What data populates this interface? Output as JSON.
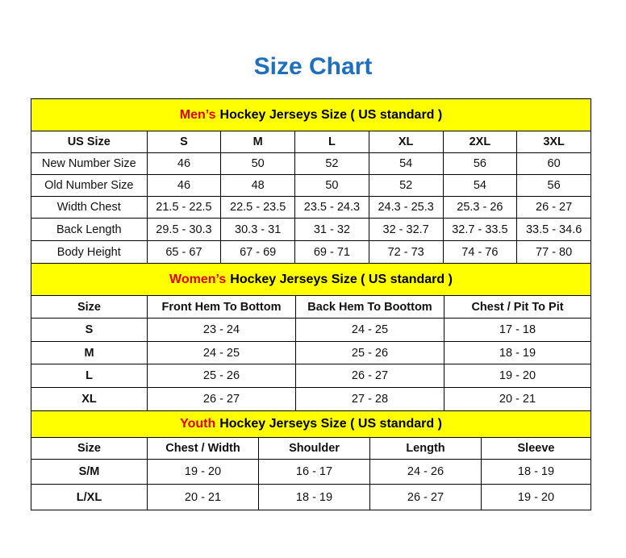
{
  "title": "Size Chart",
  "colors": {
    "title": "#1f6fbf",
    "banner": "#ffff00",
    "highlight": "#e00000"
  },
  "sections": [
    {
      "highlight": "Men’s",
      "banner": "Hockey Jerseys Size ( US standard )",
      "headers": [
        "US Size",
        "S",
        "M",
        "L",
        "XL",
        "2XL",
        "3XL"
      ],
      "rows": [
        [
          "New Number Size",
          "46",
          "50",
          "52",
          "54",
          "56",
          "60"
        ],
        [
          "Old Number Size",
          "46",
          "48",
          "50",
          "52",
          "54",
          "56"
        ],
        [
          "Width Chest",
          "21.5 - 22.5",
          "22.5 - 23.5",
          "23.5 - 24.3",
          "24.3 - 25.3",
          "25.3 - 26",
          "26 - 27"
        ],
        [
          "Back Length",
          "29.5 - 30.3",
          "30.3 - 31",
          "31 - 32",
          "32 - 32.7",
          "32.7 - 33.5",
          "33.5 - 34.6"
        ],
        [
          "Body Height",
          "65 - 67",
          "67 - 69",
          "69 - 71",
          "72 - 73",
          "74 - 76",
          "77 - 80"
        ]
      ]
    },
    {
      "highlight": "Women’s",
      "banner": "Hockey Jerseys Size ( US standard )",
      "headers": [
        "Size",
        "Front Hem To Bottom",
        "Back Hem To Boottom",
        "Chest / Pit To Pit"
      ],
      "rows": [
        [
          "S",
          "23 - 24",
          "24 - 25",
          "17 - 18"
        ],
        [
          "M",
          "24 - 25",
          "25 - 26",
          "18 - 19"
        ],
        [
          "L",
          "25 - 26",
          "26 - 27",
          "19 - 20"
        ],
        [
          "XL",
          "26 - 27",
          "27 - 28",
          "20 - 21"
        ]
      ]
    },
    {
      "highlight": "Youth",
      "banner": "Hockey Jerseys Size ( US standard )",
      "headers": [
        "Size",
        "Chest / Width",
        "Shoulder",
        "Length",
        "Sleeve"
      ],
      "rows": [
        [
          "S/M",
          "19 - 20",
          "16 - 17",
          "24 - 26",
          "18 - 19"
        ],
        [
          "L/XL",
          "20 - 21",
          "18 - 19",
          "26 - 27",
          "19 - 20"
        ]
      ]
    }
  ]
}
